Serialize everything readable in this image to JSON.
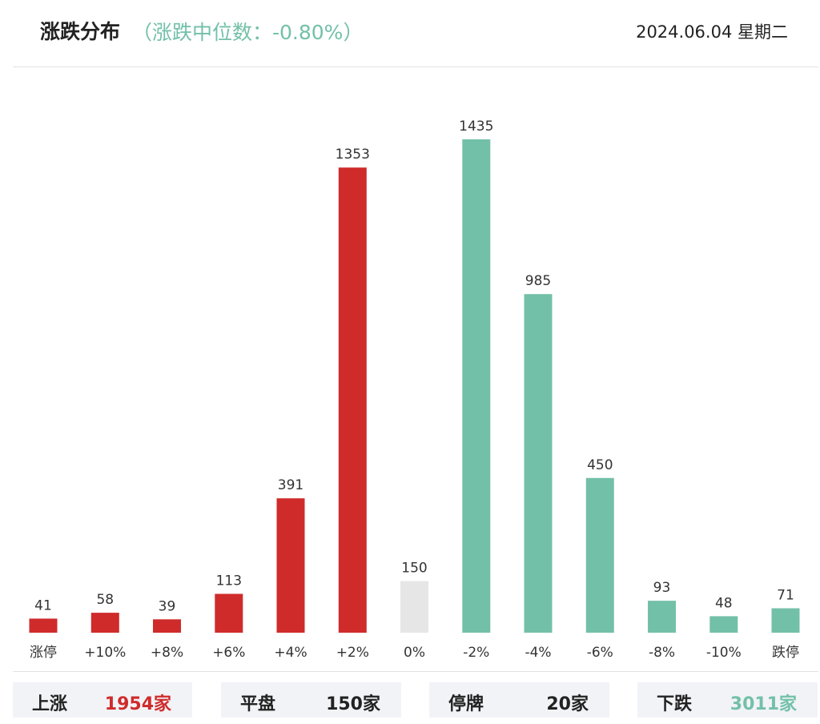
{
  "header": {
    "title": "涨跌分布",
    "subtitle": "（涨跌中位数：-0.80%）",
    "date": "2024.06.04 星期二"
  },
  "colors": {
    "up": "#cf2b2b",
    "flat": "#e6e6e6",
    "down": "#73c0a8",
    "text": "#222222"
  },
  "chart_data": {
    "type": "bar",
    "categories": [
      "涨停",
      "+10%",
      "+8%",
      "+6%",
      "+4%",
      "+2%",
      "0%",
      "-2%",
      "-4%",
      "-6%",
      "-8%",
      "-10%",
      "跌停"
    ],
    "values": [
      41,
      58,
      39,
      113,
      391,
      1353,
      150,
      1435,
      985,
      450,
      93,
      48,
      71
    ],
    "bar_colors": [
      "up",
      "up",
      "up",
      "up",
      "up",
      "up",
      "flat",
      "down",
      "down",
      "down",
      "down",
      "down",
      "down"
    ],
    "title": "",
    "xlabel": "",
    "ylabel": "",
    "grid": false,
    "legend": "none"
  },
  "summary": {
    "up": {
      "label": "上涨",
      "value": "1954家",
      "color": "up"
    },
    "flat": {
      "label": "平盘",
      "value": "150家",
      "color": "text"
    },
    "halt": {
      "label": "停牌",
      "value": "20家",
      "color": "text"
    },
    "down": {
      "label": "下跌",
      "value": "3011家",
      "color": "down"
    }
  }
}
